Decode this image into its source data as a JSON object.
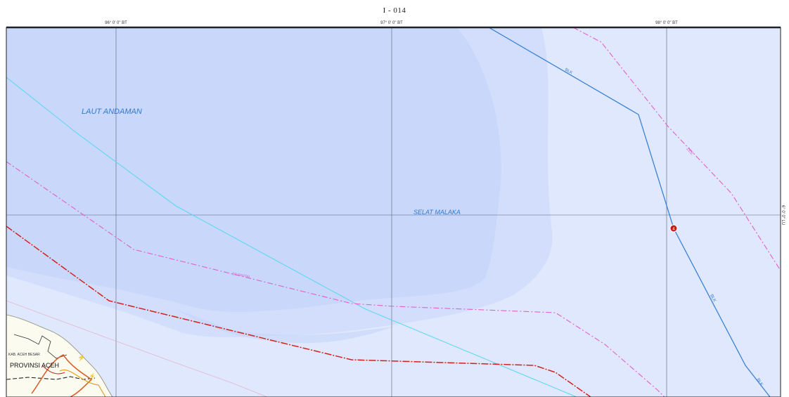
{
  "sheet_id": "I - 014",
  "graticule": {
    "longitudes": [
      "96° 0' 0\" BT",
      "97° 0' 0\" BT",
      "98° 0' 0\" BT"
    ],
    "latitude": "6° 0' 0\" LU"
  },
  "labels": {
    "sea_andaman": "LAUT ANDAMAN",
    "strait_malacca": "SELAT MALAKA",
    "province": "PROVINSI ACEH",
    "regency": "KAB. ACEH BESAR"
  },
  "line_labels": {
    "blk_1": "BLK",
    "blk_2": "BLK",
    "blk_3": "BLK",
    "zee": "ZEE",
    "lt": "BP PANTAI"
  },
  "point_marker": "4",
  "colors": {
    "sea_deep": "#c9d8fb",
    "sea_mid": "#d4e0fb",
    "sea_shallow": "#dfe8fc",
    "land": "#fbfbf0",
    "blue_line": "#3b82d6",
    "cyan_line": "#5fd8f0",
    "magenta_line": "#e060d0",
    "red_line": "#d42020",
    "grid": "#55647a",
    "label_blue": "#2f7ad0"
  }
}
